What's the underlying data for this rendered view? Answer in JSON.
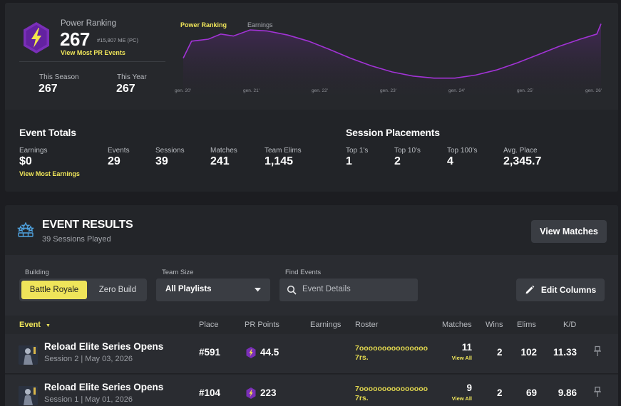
{
  "power_ranking": {
    "label": "Power Ranking",
    "value": "267",
    "me_note": "#15,807 ME (PC)",
    "link": "View Most PR Events",
    "season_label": "This Season",
    "season_value": "267",
    "year_label": "This Year",
    "year_value": "267"
  },
  "chart_data": {
    "type": "area",
    "tabs": [
      "Power Ranking",
      "Earnings"
    ],
    "active_tab": "Power Ranking",
    "x_ticks": [
      "gen. 20'",
      "gen. 21'",
      "gen. 22'",
      "gen. 23'",
      "gen. 24'",
      "gen. 25'",
      "gen. 26'"
    ],
    "series": [
      {
        "x": [
          0,
          0.02,
          0.06,
          0.09,
          0.12,
          0.16,
          0.2,
          0.25,
          0.3,
          0.35,
          0.4,
          0.45,
          0.5,
          0.55,
          0.6,
          0.65,
          0.7,
          0.75,
          0.8,
          0.85,
          0.9,
          0.95,
          0.99,
          1.0
        ],
        "values": [
          0.45,
          0.78,
          0.82,
          0.92,
          0.88,
          1.0,
          0.98,
          0.9,
          0.78,
          0.62,
          0.45,
          0.3,
          0.18,
          0.1,
          0.06,
          0.06,
          0.12,
          0.22,
          0.36,
          0.52,
          0.68,
          0.82,
          0.92,
          1.12
        ]
      }
    ],
    "color": "#a233d6"
  },
  "event_totals": {
    "title": "Event Totals",
    "earnings_label": "Earnings",
    "earnings_value": "$0",
    "earnings_link": "View Most Earnings",
    "events_label": "Events",
    "events_value": "29",
    "sessions_label": "Sessions",
    "sessions_value": "39",
    "matches_label": "Matches",
    "matches_value": "241",
    "elims_label": "Team Elims",
    "elims_value": "1,145"
  },
  "session_placements": {
    "title": "Session Placements",
    "top1_label": "Top 1's",
    "top1_value": "1",
    "top10_label": "Top 10's",
    "top10_value": "2",
    "top100_label": "Top 100's",
    "top100_value": "4",
    "avg_label": "Avg. Place",
    "avg_value": "2,345.7"
  },
  "results": {
    "title": "EVENT RESULTS",
    "subtitle": "39 Sessions Played",
    "view_matches": "View Matches",
    "building_label": "Building",
    "building_options": [
      "Battle Royale",
      "Zero Build"
    ],
    "team_size_label": "Team Size",
    "team_size_value": "All Playlists",
    "find_label": "Find Events",
    "find_placeholder": "Event Details",
    "edit_columns": "Edit Columns",
    "columns": {
      "event": "Event",
      "place": "Place",
      "pr": "PR Points",
      "earnings": "Earnings",
      "roster": "Roster",
      "matches": "Matches",
      "wins": "Wins",
      "elims": "Elims",
      "kd": "K/D"
    },
    "rows": [
      {
        "title": "Reload Elite Series Opens",
        "sub": "Session 2 | May 03, 2026",
        "place": "#591",
        "pr": "44.5",
        "roster1": "7ooooooooooooooo",
        "roster2": "7rs.",
        "matches": "11",
        "view_all": "View All",
        "wins": "2",
        "elims": "102",
        "kd": "11.33"
      },
      {
        "title": "Reload Elite Series Opens",
        "sub": "Session 1 | May 01, 2026",
        "place": "#104",
        "pr": "223",
        "roster1": "7ooooooooooooooo",
        "roster2": "7rs.",
        "matches": "9",
        "view_all": "View All",
        "wins": "2",
        "elims": "69",
        "kd": "9.86"
      }
    ]
  }
}
